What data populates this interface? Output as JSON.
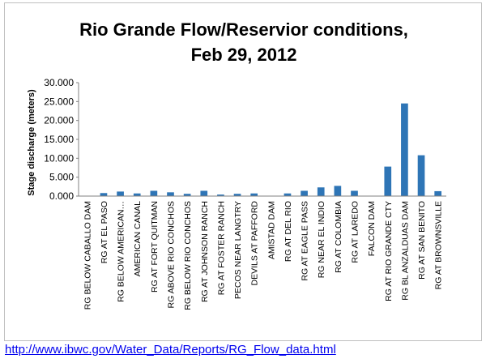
{
  "chart_data": {
    "type": "bar",
    "title_lines": [
      "Rio Grande Flow/Reservior conditions,",
      "Feb 29, 2012"
    ],
    "ylabel": "Stage discharge (meters)",
    "xlabel": "",
    "ylim": [
      0,
      30
    ],
    "yticks": [
      "0.000",
      "5.000",
      "10.000",
      "15.000",
      "20.000",
      "25.000",
      "30.000"
    ],
    "ytick_values": [
      0,
      5,
      10,
      15,
      20,
      25,
      30
    ],
    "grid": false,
    "legend": "none",
    "bar_color": "#2e75b6",
    "categories": [
      "RG BELOW CABALLO DAM",
      "RG AT EL PASO",
      "RG BELOW AMERICAN…",
      "AMERICAN CANAL",
      "RG AT FORT QUITMAN",
      "RG ABOVE RIO CONCHOS",
      "RG BELOW RIO CONCHOS",
      "RG AT JOHNSON RANCH",
      "RG AT FOSTER RANCH",
      "PECOS NEAR LANGTRY",
      "DEVILS AT PAFFORD",
      "AMISTAD DAM",
      "RG AT DEL RIO",
      "RG AT EAGLE PASS",
      "RG NEAR EL INDIO",
      "RG AT COLOMBIA",
      "RG AT LAREDO",
      "FALCON DAM",
      "RG AT RIO GRANDE CTY",
      "RG BL ANZALDUAS DAM",
      "RG AT SAN BENITO",
      "RG AT BROWNSVILLE"
    ],
    "values": [
      0,
      0.8,
      1.2,
      0.7,
      1.4,
      1.0,
      0.6,
      1.4,
      0.4,
      0.6,
      0.7,
      0,
      0.7,
      1.4,
      2.3,
      2.7,
      1.4,
      0,
      7.8,
      24.5,
      10.8,
      1.3
    ]
  },
  "footer": {
    "source_url": "http://www.ibwc.gov/Water_Data/Reports/RG_Flow_data.html"
  }
}
